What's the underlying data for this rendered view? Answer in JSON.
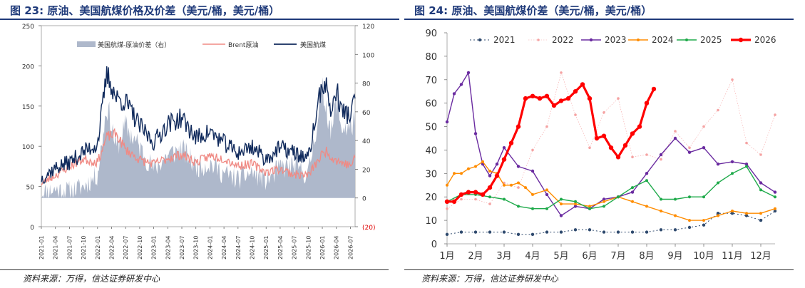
{
  "figures": {
    "left": {
      "title": "图 23:  原油、美国航煤价格及价差（美元/桶，美元/桶）",
      "source": "资料来源：万得，信达证券研发中心"
    },
    "right": {
      "title": "图 24:  原油、美国航煤价差（美元/桶，美元/桶）",
      "source": "资料来源：万得，信达证券研发中心"
    }
  },
  "chart_data": [
    {
      "type": "line",
      "title": "图 23:  原油、美国航煤价格及价差（美元/桶，美元/桶）",
      "x_ticks": [
        "2021-01",
        "2021-04",
        "2021-07",
        "2021-10",
        "2022-01",
        "2022-04",
        "2022-07",
        "2022-10",
        "2023-01",
        "2023-04",
        "2023-07",
        "2023-10",
        "2024-01",
        "2024-04",
        "2024-07",
        "2024-10",
        "2025-01",
        "2025-04",
        "2025-07",
        "2025-10",
        "2026-01",
        "2026-04",
        "2026-07"
      ],
      "y_left_ticks": [
        "0",
        "50",
        "100",
        "150",
        "200",
        "250"
      ],
      "y_right_ticks": [
        "(20)",
        "0",
        "20",
        "40",
        "60",
        "80",
        "100",
        "120"
      ],
      "ylim_left": [
        0,
        250
      ],
      "ylim_right": [
        -20,
        120
      ],
      "legend": [
        "美国航煤-原油价差（右）",
        "Brent原油",
        "美国航煤"
      ],
      "colors": {
        "spread": "#aeb8cb",
        "brent": "#f08a84",
        "jet": "#102a5c"
      },
      "x_month_index": [
        0,
        3,
        6,
        9,
        12,
        14,
        16,
        18,
        21,
        24,
        27,
        30,
        33,
        36,
        39,
        42,
        45,
        48,
        51,
        54,
        57,
        60,
        61,
        62,
        63,
        64,
        66,
        67
      ],
      "series": [
        {
          "name": "Brent原油",
          "axis": "left",
          "values": [
            54,
            64,
            75,
            84,
            80,
            112,
            115,
            96,
            83,
            78,
            85,
            90,
            80,
            88,
            85,
            76,
            78,
            68,
            72,
            65,
            64,
            90,
            95,
            86,
            83,
            80,
            76,
            85
          ]
        },
        {
          "name": "美国航煤",
          "axis": "left",
          "values": [
            60,
            73,
            80,
            93,
            103,
            190,
            160,
            155,
            125,
            105,
            128,
            135,
            110,
            118,
            104,
            92,
            100,
            84,
            98,
            92,
            84,
            180,
            170,
            140,
            172,
            145,
            138,
            160
          ]
        },
        {
          "name": "美国航煤-原油价差（右）",
          "axis": "right",
          "values": [
            4,
            6,
            5,
            8,
            16,
            65,
            35,
            50,
            35,
            20,
            30,
            34,
            22,
            24,
            17,
            13,
            18,
            12,
            21,
            22,
            16,
            75,
            62,
            45,
            70,
            50,
            48,
            58
          ]
        }
      ]
    },
    {
      "type": "line",
      "title": "图 24:  原油、美国航煤价差（美元/桶，美元/桶）",
      "categories": [
        "1月",
        "2月",
        "3月",
        "4月",
        "5月",
        "6月",
        "7月",
        "8月",
        "9月",
        "10月",
        "11月",
        "12月"
      ],
      "y_ticks": [
        "0",
        "10",
        "20",
        "30",
        "40",
        "50",
        "60",
        "70",
        "80",
        "90"
      ],
      "ylim": [
        0,
        90
      ],
      "legend": [
        "2021",
        "2022",
        "2023",
        "2024",
        "2025",
        "2026"
      ],
      "colors": {
        "2021": "#2f4a6e",
        "2022": "#f5a3a3",
        "2023": "#6a2ba0",
        "2024": "#ff8c00",
        "2025": "#1eaa4a",
        "2026": "#ff0000"
      },
      "series": [
        {
          "name": "2021",
          "x": [
            1,
            1.5,
            2,
            2.5,
            3,
            3.5,
            4,
            4.5,
            5,
            5.5,
            6,
            6.5,
            7,
            7.5,
            8,
            8.5,
            9,
            9.5,
            10,
            10.5,
            11,
            11.5,
            12,
            12.5
          ],
          "values": [
            4,
            5,
            5,
            5,
            5,
            4,
            4,
            5,
            5,
            6,
            6,
            5,
            5,
            5,
            5,
            6,
            6,
            7,
            8,
            13,
            13,
            12,
            10,
            14
          ]
        },
        {
          "name": "2022",
          "x": [
            1,
            1.5,
            2,
            2.5,
            3,
            3.5,
            4,
            4.5,
            5,
            5.5,
            6,
            6.5,
            7,
            7.5,
            8,
            8.5,
            9,
            9.5,
            10,
            10.5,
            11,
            11.5,
            12,
            12.5
          ],
          "values": [
            15,
            19,
            19,
            17,
            26,
            24,
            40,
            50,
            73,
            55,
            41,
            56,
            62,
            37,
            38,
            36,
            48,
            41,
            50,
            57,
            70,
            43,
            38,
            55
          ]
        },
        {
          "name": "2023",
          "x": [
            1,
            1.25,
            1.5,
            1.75,
            2,
            2.25,
            2.5,
            2.75,
            3,
            3.5,
            4,
            4.5,
            5,
            5.5,
            6,
            6.5,
            7,
            7.5,
            8,
            8.5,
            9,
            9.5,
            10,
            10.5,
            11,
            11.5,
            12,
            12.5
          ],
          "values": [
            52,
            64,
            68,
            73,
            47,
            34,
            29,
            34,
            41,
            33,
            31,
            21,
            12,
            16,
            15,
            19,
            20,
            22,
            30,
            38,
            45,
            39,
            41,
            34,
            35,
            34,
            26,
            22
          ]
        },
        {
          "name": "2024",
          "x": [
            1,
            1.25,
            1.5,
            1.75,
            2,
            2.25,
            2.5,
            2.75,
            3,
            3.25,
            3.5,
            3.75,
            4,
            4.5,
            5,
            5.5,
            6,
            6.5,
            7,
            7.5,
            8,
            8.5,
            9,
            9.5,
            10,
            10.5,
            11,
            11.5,
            12,
            12.5
          ],
          "values": [
            25,
            30,
            30,
            32,
            33,
            35,
            31,
            30,
            25,
            25,
            26,
            24,
            21,
            23,
            17,
            17,
            16,
            18,
            20,
            18,
            16,
            14,
            12,
            10,
            10,
            12,
            14,
            13,
            13,
            15
          ]
        },
        {
          "name": "2025",
          "x": [
            1,
            1.5,
            2,
            2.5,
            3,
            3.5,
            4,
            4.5,
            5,
            5.5,
            6,
            6.5,
            7,
            7.5,
            8,
            8.5,
            9,
            9.5,
            10,
            10.5,
            11,
            11.5,
            12,
            12.5
          ],
          "values": [
            18,
            21,
            21,
            20,
            19,
            16,
            15,
            15,
            19,
            18,
            15,
            16,
            20,
            24,
            27,
            19,
            19,
            20,
            20,
            26,
            30,
            33,
            23,
            20
          ]
        },
        {
          "name": "2026",
          "x": [
            1,
            1.25,
            1.5,
            1.75,
            2,
            2.25,
            2.5,
            2.75,
            3,
            3.25,
            3.5,
            3.75,
            4,
            4.25,
            4.5,
            4.75,
            5,
            5.25,
            5.5,
            5.75,
            6,
            6.25,
            6.5,
            6.75,
            7,
            7.25,
            7.5,
            7.75,
            8,
            8.25
          ],
          "values": [
            18,
            18,
            21,
            22,
            22,
            21,
            24,
            29,
            36,
            43,
            50,
            62,
            63,
            62,
            63,
            59,
            61,
            62,
            65,
            68,
            62,
            45,
            46,
            41,
            37,
            42,
            47,
            50,
            60,
            66
          ]
        }
      ]
    }
  ]
}
